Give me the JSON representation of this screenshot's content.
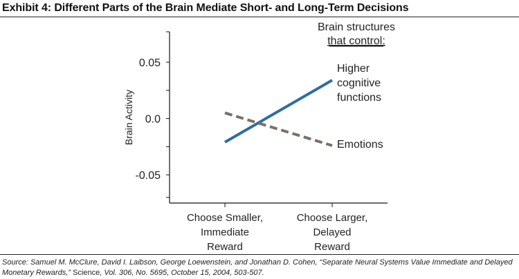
{
  "header": {
    "title": "Exhibit 4: Different Parts of the Brain Mediate Short- and Long-Term Decisions"
  },
  "source": {
    "prefix": "Source: Samuel M. McClure, David I. Laibson, George Loewenstein, and Jonathan D. Cohen, “Separate Neural Systems Value Immediate and Delayed Monetary Rewards,”",
    "journal": "Science",
    "suffix": ", Vol. 306, No. 5695, October 15, 2004, 503-507."
  },
  "colors": {
    "higher_cognitive": "#2e6da4",
    "emotions": "#7a7067",
    "axis": "#111111"
  },
  "chart_data": {
    "type": "line",
    "title": "",
    "xlabel": "",
    "ylabel": "Brain Activity",
    "categories": [
      [
        "Choose Smaller,",
        "Immediate",
        "Reward"
      ],
      [
        "Choose Larger,",
        "Delayed",
        "Reward"
      ]
    ],
    "yticks": [
      0.05,
      0.0,
      -0.05
    ],
    "ytick_labels": [
      "0.05",
      "0.0",
      "-0.05"
    ],
    "ylim": [
      -0.075,
      0.077
    ],
    "legend_title": [
      "Brain structures",
      "that control:"
    ],
    "series": [
      {
        "name": "Higher cognitive functions",
        "label_lines": [
          "Higher",
          "cognitive",
          "functions"
        ],
        "values": [
          -0.021,
          0.034
        ],
        "style": "solid",
        "color": "#2e6da4"
      },
      {
        "name": "Emotions",
        "label_lines": [
          "Emotions"
        ],
        "values": [
          0.005,
          -0.024
        ],
        "style": "dashed",
        "color": "#7a7067"
      }
    ]
  }
}
